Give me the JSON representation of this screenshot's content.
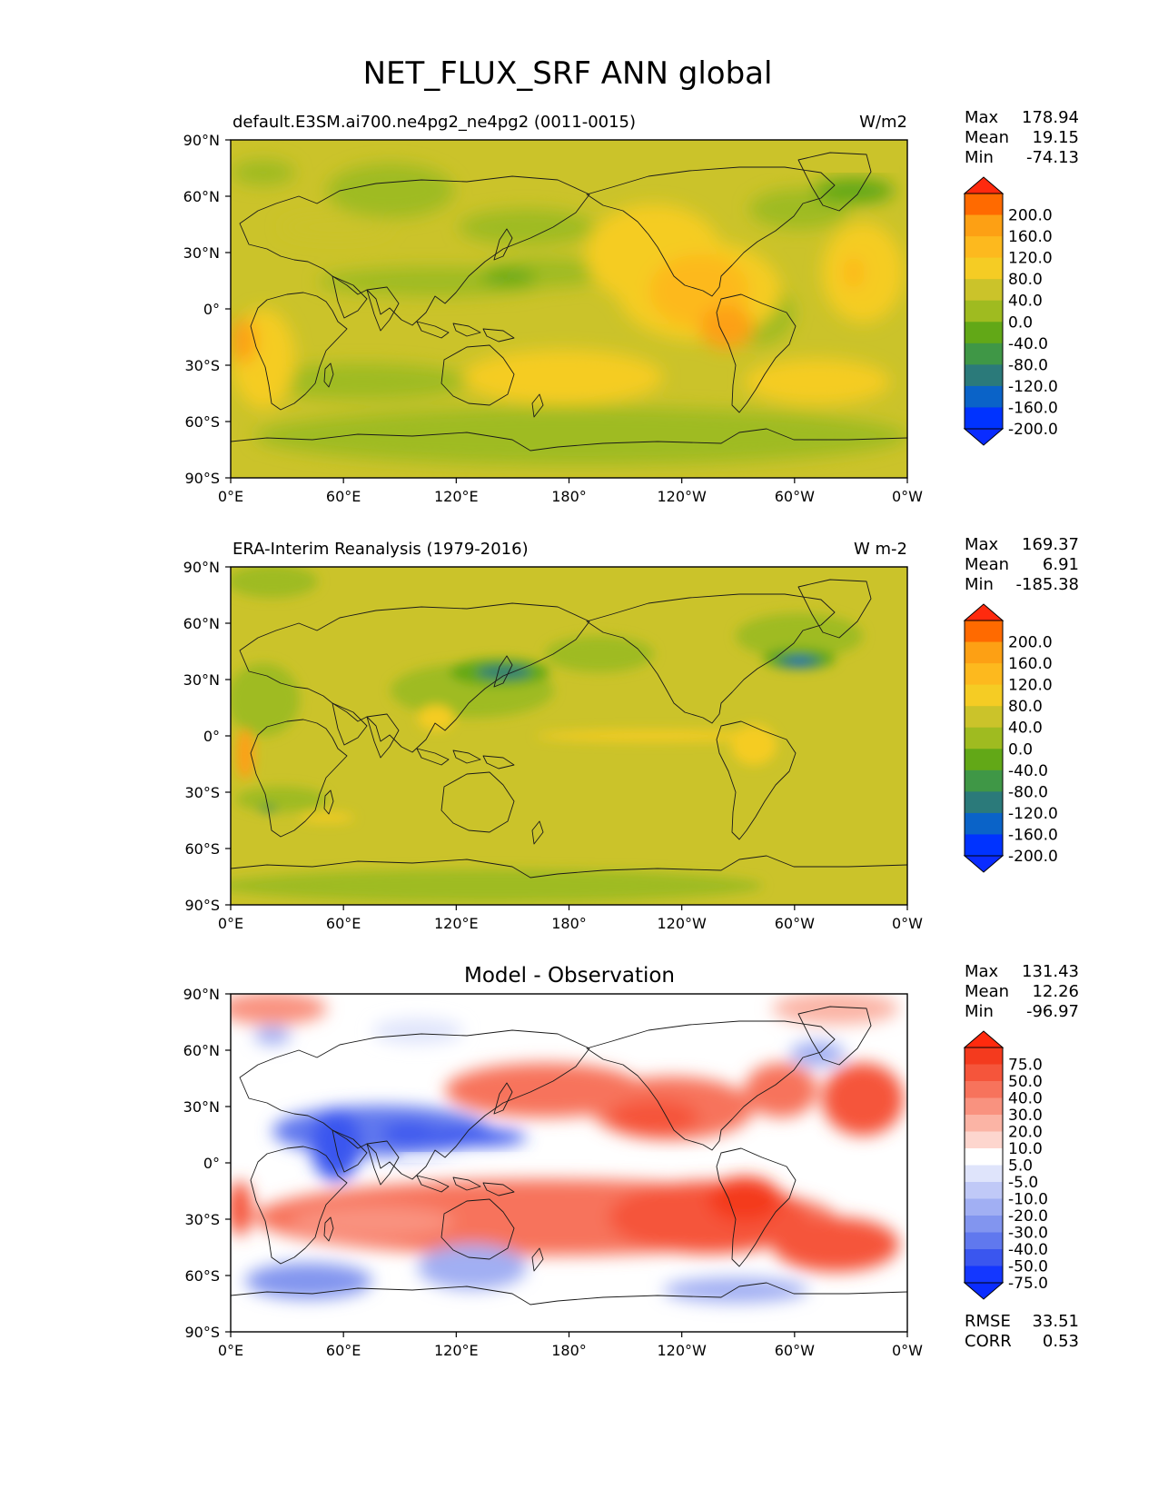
{
  "figure_title": "NET_FLUX_SRF ANN global",
  "x_ticks": [
    "0°E",
    "60°E",
    "120°E",
    "180°",
    "120°W",
    "60°W",
    "0°W"
  ],
  "y_ticks": [
    "90°N",
    "60°N",
    "30°N",
    "0°",
    "30°S",
    "60°S",
    "90°S"
  ],
  "panels": [
    {
      "title_left": "default.E3SM.ai700.ne4pg2_ne4pg2 (0011-0015)",
      "title_center": "",
      "units": "W/m2",
      "stats": [
        {
          "label": "Max",
          "value": "178.94"
        },
        {
          "label": "Mean",
          "value": "19.15"
        },
        {
          "label": "Min",
          "value": "-74.13"
        }
      ],
      "extra_stats": [],
      "colorbar": {
        "labels": [
          "200.0",
          "160.0",
          "120.0",
          "80.0",
          "40.0",
          "0.0",
          "-40.0",
          "-80.0",
          "-120.0",
          "-160.0",
          "-200.0"
        ],
        "colors": [
          "#ff2a0e",
          "#ff6a00",
          "#fda014",
          "#fdb91e",
          "#f5cc24",
          "#cbc32a",
          "#9fbb20",
          "#62a817",
          "#3f9746",
          "#2b7a7a",
          "#0a63c8",
          "#0033ff",
          "#0a2cff"
        ]
      }
    },
    {
      "title_left": "ERA-Interim Reanalysis (1979-2016)",
      "title_center": "",
      "units": "W m-2",
      "stats": [
        {
          "label": "Max",
          "value": "169.37"
        },
        {
          "label": "Mean",
          "value": "6.91"
        },
        {
          "label": "Min",
          "value": "-185.38"
        }
      ],
      "extra_stats": [],
      "colorbar": {
        "labels": [
          "200.0",
          "160.0",
          "120.0",
          "80.0",
          "40.0",
          "0.0",
          "-40.0",
          "-80.0",
          "-120.0",
          "-160.0",
          "-200.0"
        ],
        "colors": [
          "#ff2a0e",
          "#ff6a00",
          "#fda014",
          "#fdb91e",
          "#f5cc24",
          "#cbc32a",
          "#9fbb20",
          "#62a817",
          "#3f9746",
          "#2b7a7a",
          "#0a63c8",
          "#0033ff",
          "#0a2cff"
        ]
      }
    },
    {
      "title_left": "",
      "title_center": "Model - Observation",
      "units": "",
      "stats": [
        {
          "label": "Max",
          "value": "131.43"
        },
        {
          "label": "Mean",
          "value": "12.26"
        },
        {
          "label": "Min",
          "value": "-96.97"
        }
      ],
      "extra_stats": [
        {
          "label": "RMSE",
          "value": "33.51"
        },
        {
          "label": "CORR",
          "value": "0.53"
        }
      ],
      "colorbar": {
        "labels": [
          "75.0",
          "50.0",
          "40.0",
          "30.0",
          "20.0",
          "10.0",
          "5.0",
          "-5.0",
          "-10.0",
          "-20.0",
          "-30.0",
          "-40.0",
          "-50.0",
          "-75.0"
        ],
        "colors": [
          "#ff2a0e",
          "#f43a1e",
          "#f5553b",
          "#f7735c",
          "#f9927f",
          "#fbb4a5",
          "#fdd6ce",
          "#ffffff",
          "#dfe4fb",
          "#c0c9f7",
          "#a1aff3",
          "#8295ef",
          "#6078ee",
          "#3a56ef",
          "#1437ff",
          "#0a2cff"
        ]
      }
    }
  ],
  "chart_data": [
    {
      "type": "heatmap",
      "title": "default.E3SM.ai700.ne4pg2_ne4pg2 (0011-0015)",
      "units": "W/m2",
      "x_range": [
        "0°E",
        "0°W"
      ],
      "y_range": [
        "90°S",
        "90°N"
      ],
      "colorbar_levels": [
        -200,
        -160,
        -120,
        -80,
        -40,
        0,
        40,
        80,
        120,
        160,
        200
      ],
      "stats": {
        "max": 178.94,
        "mean": 19.15,
        "min": -74.13
      }
    },
    {
      "type": "heatmap",
      "title": "ERA-Interim Reanalysis (1979-2016)",
      "units": "W m-2",
      "x_range": [
        "0°E",
        "0°W"
      ],
      "y_range": [
        "90°S",
        "90°N"
      ],
      "colorbar_levels": [
        -200,
        -160,
        -120,
        -80,
        -40,
        0,
        40,
        80,
        120,
        160,
        200
      ],
      "stats": {
        "max": 169.37,
        "mean": 6.91,
        "min": -185.38
      }
    },
    {
      "type": "heatmap",
      "title": "Model - Observation",
      "x_range": [
        "0°E",
        "0°W"
      ],
      "y_range": [
        "90°S",
        "90°N"
      ],
      "colorbar_levels": [
        -75,
        -50,
        -40,
        -30,
        -20,
        -10,
        -5,
        5,
        10,
        20,
        30,
        40,
        50,
        75
      ],
      "stats": {
        "max": 131.43,
        "mean": 12.26,
        "min": -96.97,
        "rmse": 33.51,
        "corr": 0.53
      }
    }
  ]
}
